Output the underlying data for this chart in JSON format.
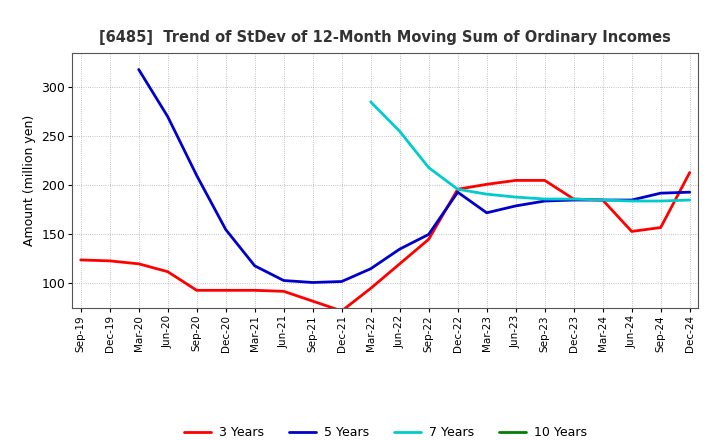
{
  "title": "[6485]  Trend of StDev of 12-Month Moving Sum of Ordinary Incomes",
  "ylabel": "Amount (million yen)",
  "ylim": [
    75,
    335
  ],
  "yticks": [
    100,
    150,
    200,
    250,
    300
  ],
  "background_color": "#ffffff",
  "grid_color": "#999999",
  "x_labels": [
    "Sep-19",
    "Dec-19",
    "Mar-20",
    "Jun-20",
    "Sep-20",
    "Dec-20",
    "Mar-21",
    "Jun-21",
    "Sep-21",
    "Dec-21",
    "Mar-22",
    "Jun-22",
    "Sep-22",
    "Dec-22",
    "Mar-23",
    "Jun-23",
    "Sep-23",
    "Dec-23",
    "Mar-24",
    "Jun-24",
    "Sep-24",
    "Dec-24"
  ],
  "series": {
    "3 Years": {
      "color": "#ff0000",
      "data": [
        124,
        123,
        120,
        112,
        93,
        93,
        93,
        92,
        82,
        72,
        95,
        120,
        145,
        196,
        201,
        205,
        205,
        186,
        185,
        153,
        157,
        213
      ]
    },
    "5 Years": {
      "color": "#0000cc",
      "data": [
        null,
        null,
        318,
        270,
        210,
        155,
        118,
        103,
        101,
        102,
        115,
        135,
        150,
        193,
        172,
        179,
        184,
        185,
        185,
        185,
        192,
        193
      ]
    },
    "7 Years": {
      "color": "#00cccc",
      "data": [
        null,
        null,
        null,
        null,
        null,
        null,
        null,
        null,
        null,
        null,
        285,
        255,
        218,
        196,
        191,
        188,
        186,
        186,
        185,
        184,
        184,
        185
      ]
    },
    "10 Years": {
      "color": "#008000",
      "data": [
        null,
        null,
        null,
        null,
        null,
        null,
        null,
        null,
        null,
        null,
        null,
        null,
        null,
        null,
        null,
        null,
        null,
        null,
        null,
        null,
        null,
        null
      ]
    }
  }
}
